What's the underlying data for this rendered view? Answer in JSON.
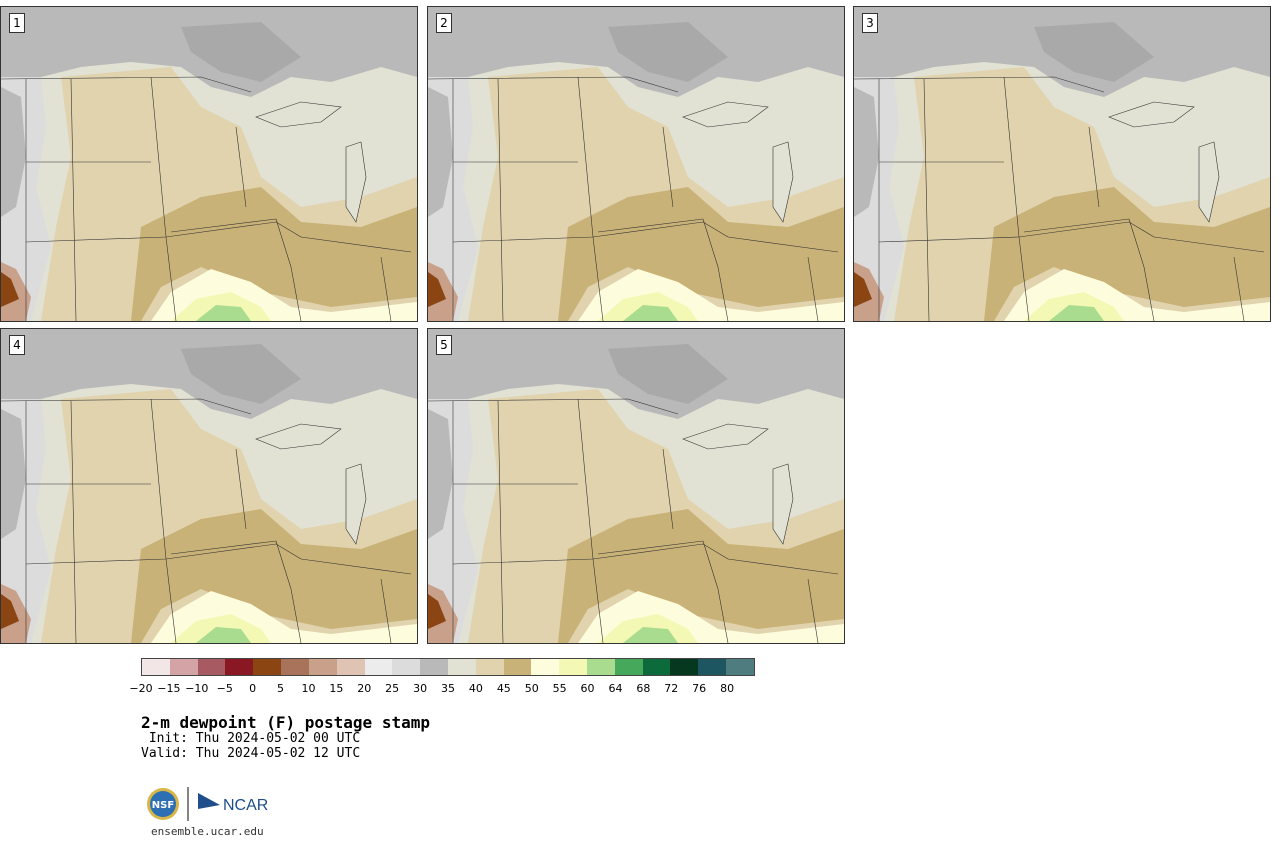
{
  "panels": [
    {
      "label": "1"
    },
    {
      "label": "2"
    },
    {
      "label": "3"
    },
    {
      "label": "4"
    },
    {
      "label": "5"
    }
  ],
  "colorbar": {
    "colors": [
      "#f2e6e6",
      "#d4a3a6",
      "#a85a62",
      "#8a1822",
      "#8b4513",
      "#a8735a",
      "#c9a08a",
      "#dfc4b4",
      "#ececec",
      "#dcdcdc",
      "#b9b9b9",
      "#e1e1d4",
      "#e0d3ae",
      "#c9b277",
      "#fdfcdc",
      "#f3f9b4",
      "#a9dc8e",
      "#45a85a",
      "#0b6b3a",
      "#06381f",
      "#1d5560",
      "#4e7c7f"
    ],
    "ticks": [
      "-20",
      "-15",
      "-10",
      "-5",
      "0",
      "5",
      "10",
      "15",
      "20",
      "25",
      "30",
      "35",
      "40",
      "45",
      "50",
      "55",
      "60",
      "64",
      "68",
      "72",
      "76",
      "80"
    ]
  },
  "title": "2-m dewpoint (F) postage stamp",
  "init": " Init: Thu 2024-05-02 00 UTC",
  "valid": "Valid: Thu 2024-05-02 12 UTC",
  "footer_url": "ensemble.ucar.edu",
  "logos": {
    "nsf": "NSF",
    "ncar": "NCAR"
  }
}
